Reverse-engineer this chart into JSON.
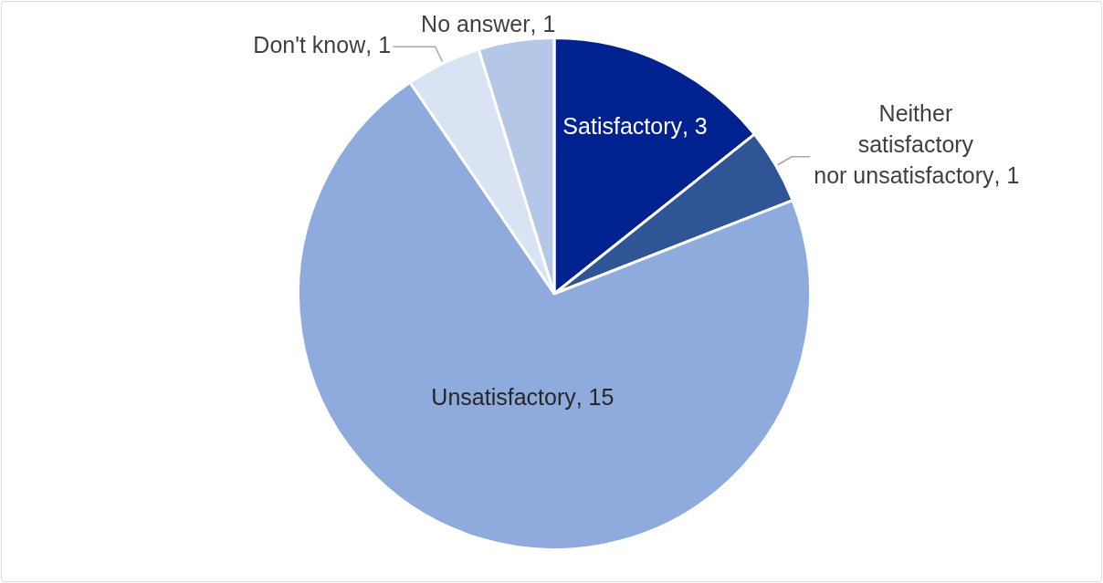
{
  "chart_data": {
    "type": "pie",
    "categories": [
      "Satisfactory",
      "Neither satisfactory nor unsatisfactory",
      "Unsatisfactory",
      "Don't know",
      "No answer"
    ],
    "values": [
      3,
      1,
      15,
      1,
      1
    ],
    "value_labels": [
      ", 3",
      ", 1",
      ", 15",
      ", 1",
      ", 1"
    ],
    "colors": [
      "#002290",
      "#2f5597",
      "#8faadc",
      "#dae3f3",
      "#b4c7e7"
    ]
  }
}
